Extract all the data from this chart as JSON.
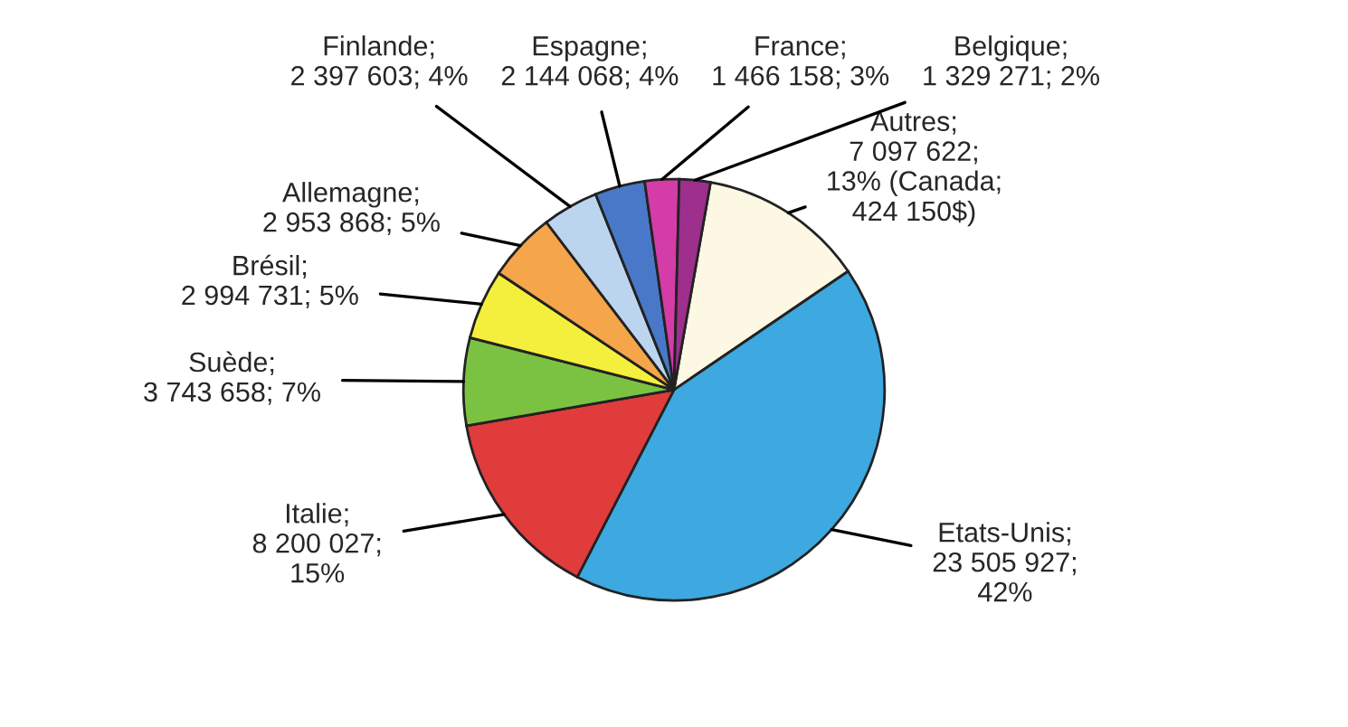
{
  "chart_data": {
    "type": "pie",
    "categories": [
      "Autres",
      "Etats-Unis",
      "Italie",
      "Suède",
      "Brésil",
      "Allemagne",
      "Finlande",
      "Espagne",
      "France",
      "Belgique"
    ],
    "values": [
      7097622,
      23505927,
      8200027,
      3743658,
      2994731,
      2953868,
      2397603,
      2144068,
      1466158,
      1329271
    ],
    "value_labels": [
      ";\n7 097 622;\n13% (Canada;\n424 150$)",
      ";\n23 505 927;\n42%",
      ";\n8 200 027;\n15%",
      ";\n3 743 658; 7%",
      ";\n2 994 731; 5%",
      ";\n2 953 868; 5%",
      ";\n2 397 603; 4%",
      ";\n2 144 068; 4%",
      ";\n1 466 158; 3%",
      ";\n1 329 271; 2%"
    ],
    "colors": [
      "#fdf8e4",
      "#3ea8e0",
      "#e03c3c",
      "#7cc242",
      "#f4ef3c",
      "#f5a54a",
      "#bcd5ef",
      "#4a78c8",
      "#d43ca8",
      "#9e2f8c"
    ],
    "legend": false
  }
}
